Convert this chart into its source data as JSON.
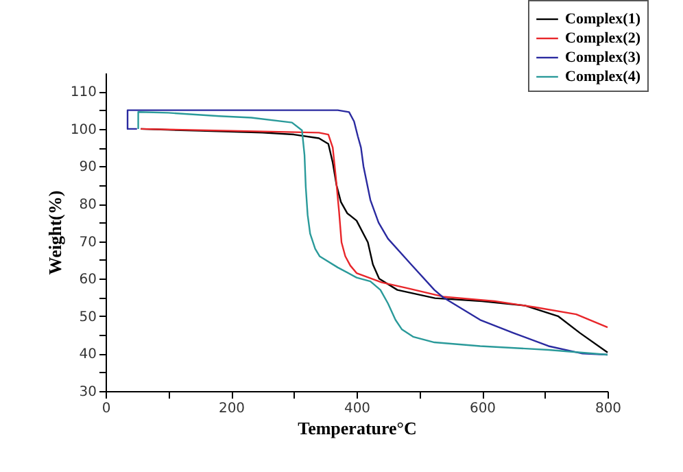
{
  "chart_data": {
    "type": "line",
    "xlabel": "Temperature°C",
    "ylabel": "Weight(%)",
    "xlim": [
      0,
      800
    ],
    "ylim": [
      30,
      115
    ],
    "xticks": [
      0,
      {
        "value": 100,
        "label": null
      },
      200,
      {
        "value": 300,
        "label": null
      },
      400,
      {
        "value": 500,
        "label": null
      },
      600,
      {
        "value": 700,
        "label": null
      },
      800
    ],
    "yticks": [
      30,
      {
        "value": 35,
        "label": null
      },
      40,
      {
        "value": 45,
        "label": null
      },
      50,
      {
        "value": 55,
        "label": null
      },
      60,
      {
        "value": 65,
        "label": null
      },
      70,
      {
        "value": 75,
        "label": null
      },
      80,
      {
        "value": 85,
        "label": null
      },
      90,
      {
        "value": 95,
        "label": null
      },
      100,
      {
        "value": 105,
        "label": null
      },
      110
    ],
    "grid": false,
    "legend": "top right",
    "marker": "none",
    "line_style": "solid",
    "series": [
      {
        "name": "Complex(1)",
        "color": "#000000",
        "x": [
          56,
          150,
          250,
          300,
          340,
          355,
          362,
          368,
          375,
          385,
          400,
          418,
          426,
          436,
          465,
          525,
          600,
          669,
          721,
          756,
          800
        ],
        "values": [
          100,
          99.5,
          99,
          98.5,
          97.5,
          96,
          91,
          85,
          80.5,
          77.5,
          75.5,
          69.7,
          63.8,
          60,
          57,
          54.8,
          54,
          52.8,
          50,
          45.5,
          40.3
        ]
      },
      {
        "name": "Complex(2)",
        "color": "#e8262a",
        "x": [
          56,
          200,
          340,
          355,
          362,
          367,
          372,
          376,
          382,
          390,
          400,
          440,
          480,
          538,
          620,
          684,
          750,
          800
        ],
        "values": [
          100,
          99.5,
          99,
          98.5,
          95,
          87,
          78,
          69.7,
          66,
          63.5,
          61.5,
          59,
          57.5,
          55.2,
          54,
          52.4,
          50.5,
          47
        ]
      },
      {
        "name": "Complex(3)",
        "color": "#2a2aa0",
        "x": [
          50,
          35,
          35,
          200,
          370,
          388,
          396,
          402,
          407,
          411,
          422,
          435,
          450,
          487,
          524,
          538,
          597,
          650,
          706,
          760,
          800
        ],
        "values": [
          100,
          100,
          105,
          105,
          105,
          104.5,
          102,
          98,
          95,
          90,
          81,
          75,
          70.7,
          63.8,
          57,
          55,
          49,
          45.5,
          42,
          40,
          39.7
        ]
      },
      {
        "name": "Complex(4)",
        "color": "#2a9a9a",
        "x": [
          52,
          52,
          100,
          181,
          232,
          297,
          313,
          317,
          319,
          322,
          326,
          334,
          341,
          370,
          400,
          422,
          438,
          450,
          462,
          472,
          490,
          524,
          597,
          706,
          800
        ],
        "values": [
          100,
          104.5,
          104.3,
          103.4,
          103,
          101.7,
          99.6,
          93,
          84.5,
          77,
          72,
          68,
          66,
          63,
          60.3,
          59.3,
          57,
          53.4,
          49,
          46.5,
          44.5,
          43,
          42,
          41,
          39.7
        ]
      }
    ]
  }
}
